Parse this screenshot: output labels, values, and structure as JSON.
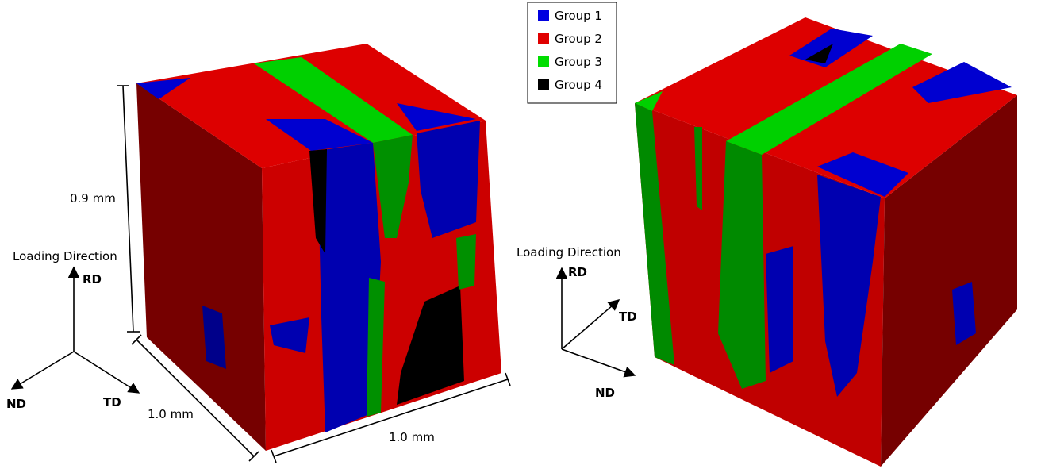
{
  "legend": [
    {
      "label": "Group 1",
      "color": "#0000e0"
    },
    {
      "label": "Group 2",
      "color": "#e00000"
    },
    {
      "label": "Group 3",
      "color": "#00dd00"
    },
    {
      "label": "Group 4",
      "color": "#000000"
    }
  ],
  "left_cube": {
    "height_label": "0.9 mm",
    "depth_label": "1.0 mm",
    "width_label": "1.0 mm",
    "axes": {
      "title": "Loading Direction",
      "up": "RD",
      "left": "ND",
      "right": "TD"
    }
  },
  "right_cube": {
    "axes": {
      "title": "Loading Direction",
      "up": "RD",
      "diagonal": "TD",
      "down": "ND"
    }
  }
}
